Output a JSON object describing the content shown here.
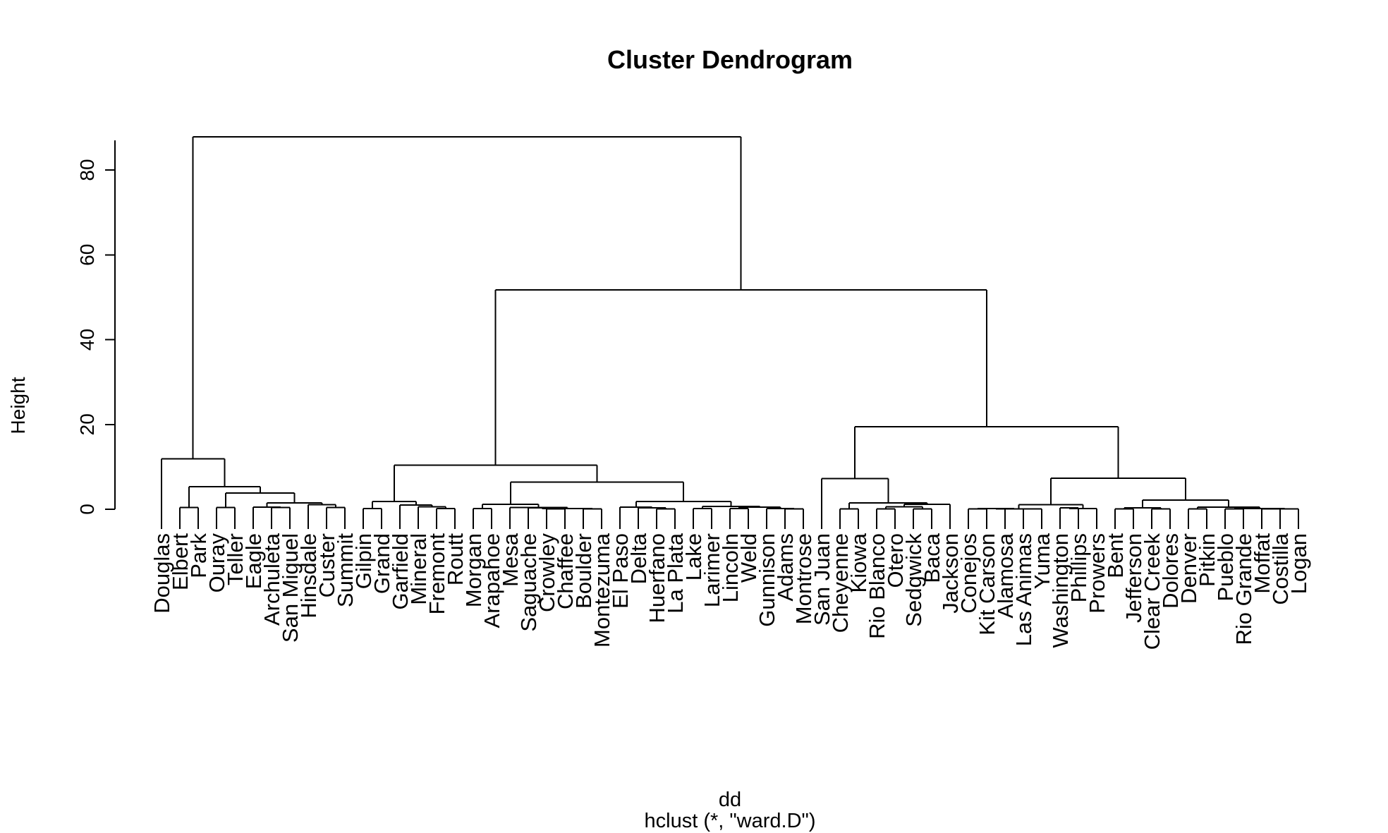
{
  "chart_data": {
    "type": "dendrogram",
    "title": "Cluster Dendrogram",
    "xlabel": "dd",
    "sublabel": "hclust (*, \"ward.D\")",
    "ylabel": "Height",
    "ylim": [
      0,
      90
    ],
    "yticks": [
      0,
      20,
      40,
      60,
      80
    ],
    "leaves": [
      "Douglas",
      "Elbert",
      "Park",
      "Ouray",
      "Teller",
      "Eagle",
      "Archuleta",
      "San Miguel",
      "Hinsdale",
      "Custer",
      "Summit",
      "Gilpin",
      "Grand",
      "Garfield",
      "Mineral",
      "Fremont",
      "Routt",
      "Morgan",
      "Arapahoe",
      "Mesa",
      "Saguache",
      "Crowley",
      "Chaffee",
      "Boulder",
      "Montezuma",
      "El Paso",
      "Delta",
      "Huerfano",
      "La Plata",
      "Lake",
      "Larimer",
      "Lincoln",
      "Weld",
      "Gunnison",
      "Adams",
      "Montrose",
      "San Juan",
      "Cheyenne",
      "Kiowa",
      "Rio Blanco",
      "Otero",
      "Sedgwick",
      "Baca",
      "Jackson",
      "Conejos",
      "Kit Carson",
      "Alamosa",
      "Las Animas",
      "Yuma",
      "Washington",
      "Phillips",
      "Prowers",
      "Bent",
      "Jefferson",
      "Clear Creek",
      "Dolores",
      "Denver",
      "Pitkin",
      "Pueblo",
      "Rio Grande",
      "Moffat",
      "Costilla",
      "Logan"
    ],
    "merges": [
      {
        "a": "L:Elbert",
        "b": "L:Park",
        "h": 0.4,
        "id": "EP"
      },
      {
        "a": "L:Ouray",
        "b": "L:Teller",
        "h": 0.4,
        "id": "OT"
      },
      {
        "a": "L:Archuleta",
        "b": "L:San Miguel",
        "h": 0.4,
        "id": "AS"
      },
      {
        "a": "L:Eagle",
        "b": "N:AS",
        "h": 0.5,
        "id": "EAS"
      },
      {
        "a": "L:Custer",
        "b": "L:Summit",
        "h": 0.4,
        "id": "CS"
      },
      {
        "a": "L:Hinsdale",
        "b": "N:CS",
        "h": 1.1,
        "id": "HCS"
      },
      {
        "a": "N:EAS",
        "b": "N:HCS",
        "h": 1.5,
        "id": "EH"
      },
      {
        "a": "N:OT",
        "b": "N:EH",
        "h": 3.8,
        "id": "OTEH"
      },
      {
        "a": "N:EP",
        "b": "N:OTEH",
        "h": 5.3,
        "id": "EPO"
      },
      {
        "a": "L:Douglas",
        "b": "N:EPO",
        "h": 11.9,
        "id": "G1"
      },
      {
        "a": "L:Gilpin",
        "b": "L:Grand",
        "h": 0.2,
        "id": "GG"
      },
      {
        "a": "L:Fremont",
        "b": "L:Routt",
        "h": 0.2,
        "id": "FR"
      },
      {
        "a": "L:Mineral",
        "b": "N:FR",
        "h": 0.6,
        "id": "MFR"
      },
      {
        "a": "L:Garfield",
        "b": "N:MFR",
        "h": 1.0,
        "id": "GMF"
      },
      {
        "a": "N:GG",
        "b": "N:GMF",
        "h": 1.8,
        "id": "G2"
      },
      {
        "a": "L:Morgan",
        "b": "L:Arapahoe",
        "h": 0.2,
        "id": "MA"
      },
      {
        "a": "L:Crowley",
        "b": "L:Chaffee",
        "h": 0.1,
        "id": "CC"
      },
      {
        "a": "L:Saguache",
        "b": "N:CC",
        "h": 0.3,
        "id": "SCC"
      },
      {
        "a": "L:Boulder",
        "b": "L:Montezuma",
        "h": 0.1,
        "id": "BM"
      },
      {
        "a": "N:SCC",
        "b": "N:BM",
        "h": 0.2,
        "id": "SB"
      },
      {
        "a": "L:Mesa",
        "b": "N:SB",
        "h": 0.4,
        "id": "MSB"
      },
      {
        "a": "N:MA",
        "b": "N:MSB",
        "h": 1.2,
        "id": "G3"
      },
      {
        "a": "L:Huerfano",
        "b": "L:La Plata",
        "h": 0.1,
        "id": "HL"
      },
      {
        "a": "L:Delta",
        "b": "N:HL",
        "h": 0.3,
        "id": "DHL"
      },
      {
        "a": "L:El Paso",
        "b": "N:DHL",
        "h": 0.5,
        "id": "EDH"
      },
      {
        "a": "L:Lake",
        "b": "L:Larimer",
        "h": 0.2,
        "id": "LL"
      },
      {
        "a": "L:Lincoln",
        "b": "L:Weld",
        "h": 0.2,
        "id": "LW"
      },
      {
        "a": "L:Adams",
        "b": "L:Montrose",
        "h": 0.1,
        "id": "AM"
      },
      {
        "a": "L:Gunnison",
        "b": "N:AM",
        "h": 0.2,
        "id": "GAM"
      },
      {
        "a": "N:LW",
        "b": "N:GAM",
        "h": 0.5,
        "id": "LWG"
      },
      {
        "a": "N:LL",
        "b": "N:LWG",
        "h": 0.7,
        "id": "LLW"
      },
      {
        "a": "N:EDH",
        "b": "N:LLW",
        "h": 1.8,
        "id": "G4"
      },
      {
        "a": "N:G3",
        "b": "N:G4",
        "h": 6.4,
        "id": "G34"
      },
      {
        "a": "N:G2",
        "b": "N:G34",
        "h": 10.4,
        "id": "GM"
      },
      {
        "a": "L:Cheyenne",
        "b": "L:Kiowa",
        "h": 0.1,
        "id": "CK"
      },
      {
        "a": "L:Rio Blanco",
        "b": "L:Otero",
        "h": 0.1,
        "id": "RO"
      },
      {
        "a": "L:Sedgwick",
        "b": "L:Baca",
        "h": 0.1,
        "id": "SBa"
      },
      {
        "a": "N:RO",
        "b": "N:SBa",
        "h": 0.6,
        "id": "ROS"
      },
      {
        "a": "L:Jackson",
        "b": "N:ROS",
        "h": 1.2,
        "id": "JR"
      },
      {
        "a": "N:CK",
        "b": "N:JR",
        "h": 1.5,
        "id": "CKJ"
      },
      {
        "a": "L:San Juan",
        "b": "N:CKJ",
        "h": 7.2,
        "id": "G5"
      },
      {
        "a": "L:Conejos",
        "b": "L:Kit Carson",
        "h": 0.1,
        "id": "CKC"
      },
      {
        "a": "L:Alamosa",
        "b": "L:Las Animas",
        "h": 0.1,
        "id": "AL"
      },
      {
        "a": "N:CKC",
        "b": "N:AL",
        "h": 0.2,
        "id": "CA"
      },
      {
        "a": "L:Yuma",
        "b": "N:CA",
        "h": 0.1,
        "id": "YCA"
      },
      {
        "a": "L:Washington",
        "b": "L:Phillips",
        "h": 0.3,
        "id": "WP"
      },
      {
        "a": "L:Prowers",
        "b": "N:WP",
        "h": 0.2,
        "id": "PWP"
      },
      {
        "a": "N:YCA",
        "b": "N:PWP",
        "h": 1.1,
        "id": "G6"
      },
      {
        "a": "L:Bent",
        "b": "L:Jefferson",
        "h": 0.1,
        "id": "BJ"
      },
      {
        "a": "L:Clear Creek",
        "b": "L:Dolores",
        "h": 0.1,
        "id": "CD"
      },
      {
        "a": "N:BJ",
        "b": "N:CD",
        "h": 0.3,
        "id": "BJC"
      },
      {
        "a": "L:Denver",
        "b": "L:Pitkin",
        "h": 0.1,
        "id": "DP"
      },
      {
        "a": "L:Pueblo",
        "b": "L:Rio Grande",
        "h": 0.1,
        "id": "PR"
      },
      {
        "a": "L:Moffat",
        "b": "L:Costilla",
        "h": 0.1,
        "id": "MC"
      },
      {
        "a": "N:MC",
        "b": "L:Logan",
        "h": 0.1,
        "id": "MCL"
      },
      {
        "a": "N:PR",
        "b": "N:MCL",
        "h": 0.2,
        "id": "PRM"
      },
      {
        "a": "N:DP",
        "b": "N:PRM",
        "h": 0.5,
        "id": "DPR"
      },
      {
        "a": "N:BJC",
        "b": "N:DPR",
        "h": 2.2,
        "id": "G7"
      },
      {
        "a": "N:G6",
        "b": "N:G7",
        "h": 7.3,
        "id": "G67"
      },
      {
        "a": "N:G5",
        "b": "N:G67",
        "h": 19.5,
        "id": "GR"
      },
      {
        "a": "N:GM",
        "b": "N:GR",
        "h": 51.7,
        "id": "MR"
      },
      {
        "a": "N:G1",
        "b": "N:MR",
        "h": 87.8,
        "id": "ROOT"
      }
    ]
  }
}
